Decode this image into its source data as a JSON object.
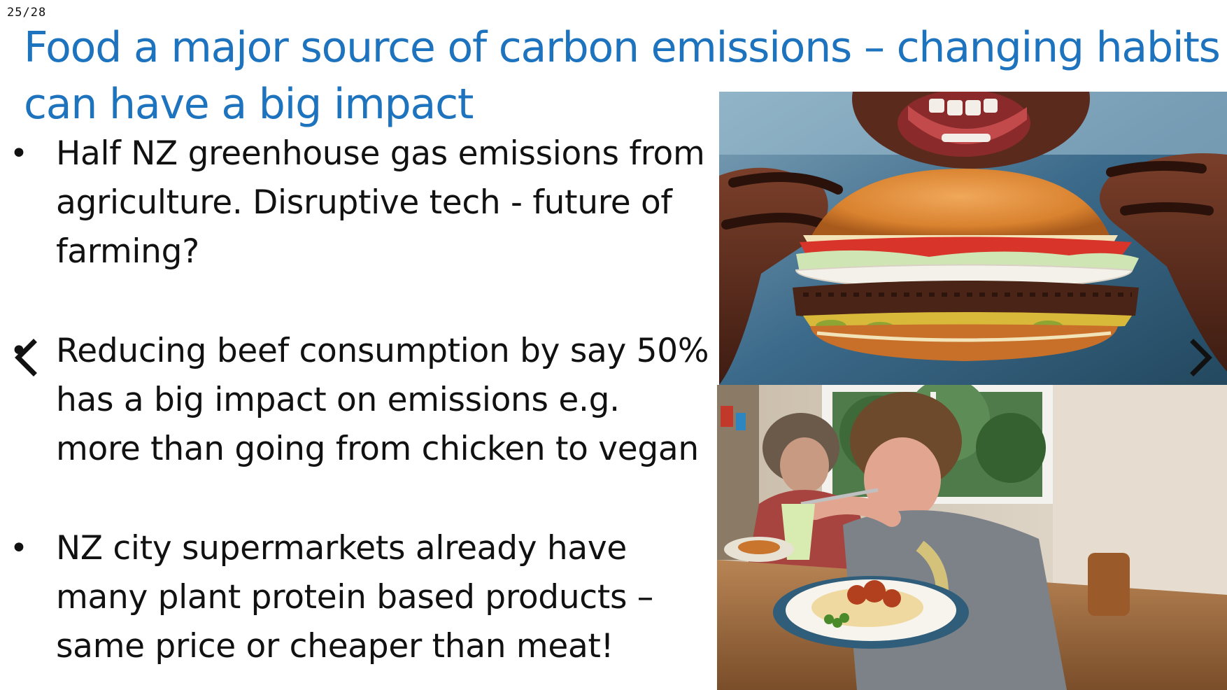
{
  "slide": {
    "counter": "25/28",
    "title": "Food a major source of carbon emissions – changing habits can have a big impact",
    "bullets": [
      {
        "text": "Half NZ greenhouse gas emissions from agriculture. Disruptive tech - future of  farming?"
      },
      {
        "text": "Reducing beef consumption by say 50% has a big impact on emissions e.g. more than going from chicken to vegan"
      },
      {
        "text": "NZ city supermarkets already have many plant protein based products – same price or cheaper than meat!"
      }
    ],
    "bullet_symbol": "•"
  },
  "images": {
    "top": {
      "icon": "burger-photo"
    },
    "bottom": {
      "icon": "family-dinner-photo"
    }
  },
  "navigation": {
    "prev_icon": "chevron-left-icon",
    "next_icon": "chevron-right-icon"
  },
  "colors": {
    "title": "#1e73be",
    "text": "#111111",
    "background": "#ffffff"
  }
}
